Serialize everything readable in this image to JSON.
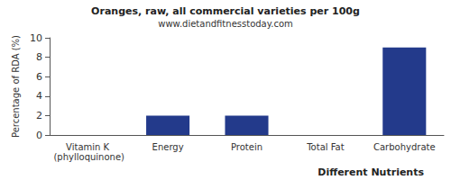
{
  "chart_data": {
    "type": "bar",
    "title": "Oranges, raw, all commercial varieties per 100g",
    "subtitle": "www.dietandfitnesstoday.com",
    "x_label": "Different Nutrients",
    "y_label": "Percentage of RDA (%)",
    "categories": [
      "Vitamin K (phylloquinone)",
      "Energy",
      "Protein",
      "Total Fat",
      "Carbohydrate"
    ],
    "values": [
      0,
      2,
      2,
      0,
      9
    ],
    "color": "#233a8b",
    "ylim": [
      0,
      10
    ],
    "yticks": [
      0,
      2,
      4,
      6,
      8,
      10
    ],
    "grid": false
  }
}
